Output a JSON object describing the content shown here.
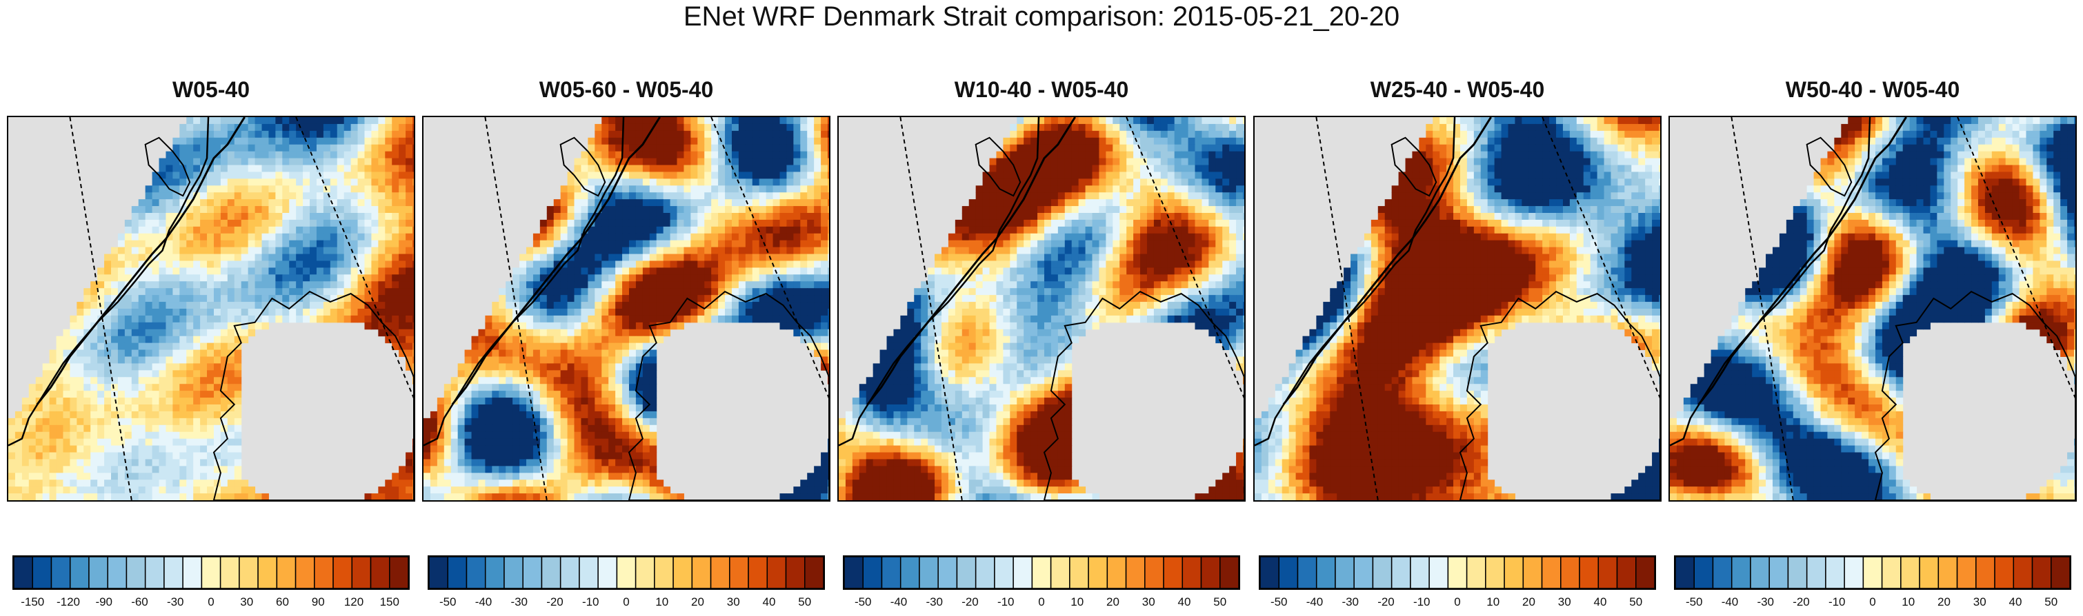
{
  "title": "ENet WRF Denmark Strait comparison: 2015-05-21_20-20",
  "palette": [
    "#08306b",
    "#08519c",
    "#2171b5",
    "#4292c6",
    "#6baed6",
    "#83bde0",
    "#9ecae1",
    "#b5d9ec",
    "#cce7f4",
    "#e6f5fb",
    "#fff7bc",
    "#fee99a",
    "#fed976",
    "#fec44f",
    "#fdae3d",
    "#f98f2a",
    "#ee7018",
    "#dd5209",
    "#c23a05",
    "#a12603",
    "#7f1a03"
  ],
  "colors": {
    "land": "#e0e0e0",
    "frame": "#000000"
  },
  "chart_data": [
    {
      "type": "heatmap",
      "title": "W05-40",
      "colorbar_ticks": [
        "-150",
        "-120",
        "-90",
        "-60",
        "-30",
        "0",
        "30",
        "60",
        "90",
        "120",
        "150"
      ],
      "range": [
        -150,
        150
      ]
    },
    {
      "type": "heatmap",
      "title": "W05-60 - W05-40",
      "colorbar_ticks": [
        "-50",
        "-40",
        "-30",
        "-20",
        "-10",
        "0",
        "10",
        "20",
        "30",
        "40",
        "50"
      ],
      "range": [
        -50,
        50
      ]
    },
    {
      "type": "heatmap",
      "title": "W10-40 - W05-40",
      "colorbar_ticks": [
        "-50",
        "-40",
        "-30",
        "-20",
        "-10",
        "0",
        "10",
        "20",
        "30",
        "40",
        "50"
      ],
      "range": [
        -50,
        50
      ]
    },
    {
      "type": "heatmap",
      "title": "W25-40 - W05-40",
      "colorbar_ticks": [
        "-50",
        "-40",
        "-30",
        "-20",
        "-10",
        "0",
        "10",
        "20",
        "30",
        "40",
        "50"
      ],
      "range": [
        -50,
        50
      ]
    },
    {
      "type": "heatmap",
      "title": "W50-40 - W05-40",
      "colorbar_ticks": [
        "-50",
        "-40",
        "-30",
        "-20",
        "-10",
        "0",
        "10",
        "20",
        "30",
        "40",
        "50"
      ],
      "range": [
        -50,
        50
      ]
    }
  ]
}
